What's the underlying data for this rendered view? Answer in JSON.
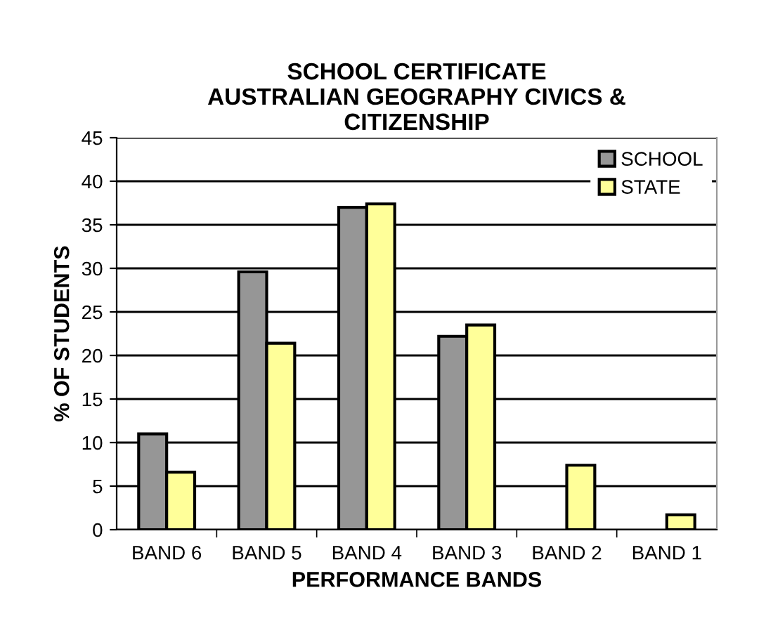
{
  "chart_data": {
    "type": "bar",
    "title": "SCHOOL CERTIFICATE\nAUSTRALIAN GEOGRAPHY CIVICS &\nCITIZENSHIP",
    "xlabel": "PERFORMANCE BANDS",
    "ylabel": "% OF STUDENTS",
    "categories": [
      "BAND 6",
      "BAND 5",
      "BAND 4",
      "BAND 3",
      "BAND 2",
      "BAND 1"
    ],
    "series": [
      {
        "name": "SCHOOL",
        "color": "#969696",
        "values": [
          11.0,
          29.6,
          37.0,
          22.2,
          null,
          null
        ]
      },
      {
        "name": "STATE",
        "color": "#ffff99",
        "values": [
          6.6,
          21.4,
          37.4,
          23.5,
          7.4,
          1.7
        ]
      }
    ],
    "ylim": [
      0,
      45
    ],
    "yticks": [
      0,
      5,
      10,
      15,
      20,
      25,
      30,
      35,
      40,
      45
    ],
    "grid": "y",
    "legend": "top right"
  }
}
